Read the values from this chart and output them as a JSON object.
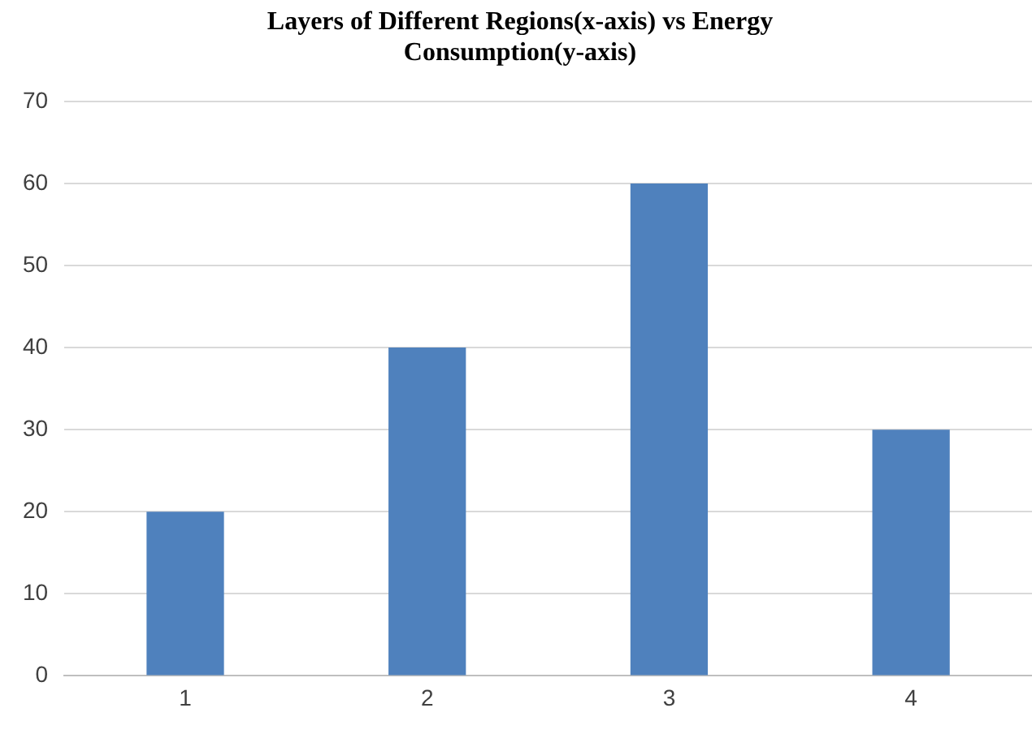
{
  "chart_data": {
    "type": "bar",
    "title": "Layers of Different Regions(x-axis) vs Energy Consumption(y-axis)",
    "categories": [
      "1",
      "2",
      "3",
      "4"
    ],
    "values": [
      20,
      40,
      60,
      30
    ],
    "color": "#4f81bd",
    "ylim": [
      0,
      70
    ],
    "yticks": [
      0,
      10,
      20,
      30,
      40,
      50,
      60,
      70
    ],
    "grid": "y"
  }
}
